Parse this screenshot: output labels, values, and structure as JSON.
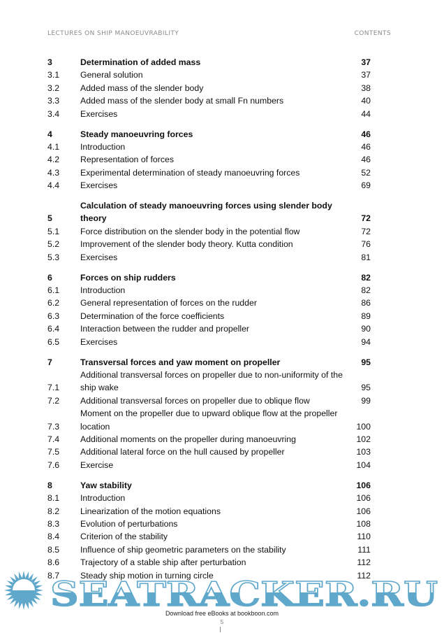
{
  "header": {
    "left": "LECTURES ON SHIP MANOEUVRABILITY",
    "right": "CONTENTS"
  },
  "toc": [
    {
      "chapter": {
        "num": "3",
        "title": "Determination of added mass",
        "page": "37"
      },
      "items": [
        {
          "num": "3.1",
          "title": "General solution",
          "page": "37"
        },
        {
          "num": "3.2",
          "title": "Added mass of the slender body",
          "page": "38"
        },
        {
          "num": "3.3",
          "title": "Added mass of the slender body at small Fn numbers",
          "page": "40"
        },
        {
          "num": "3.4",
          "title": "Exercises",
          "page": "44"
        }
      ]
    },
    {
      "chapter": {
        "num": "4",
        "title": "Steady manoeuvring forces",
        "page": "46"
      },
      "items": [
        {
          "num": "4.1",
          "title": "Introduction",
          "page": "46"
        },
        {
          "num": "4.2",
          "title": "Representation of forces",
          "page": "46"
        },
        {
          "num": "4.3",
          "title": "Experimental determination of steady manoeuvring forces",
          "page": "52"
        },
        {
          "num": "4.4",
          "title": "Exercises",
          "page": "69"
        }
      ]
    },
    {
      "chapter": {
        "num": "5",
        "title": "Calculation of steady manoeuvring forces using slender body theory",
        "page": "72"
      },
      "items": [
        {
          "num": "5.1",
          "title": "Force distribution on the slender body in the potential flow",
          "page": "72"
        },
        {
          "num": "5.2",
          "title": "Improvement of the slender body theory. Kutta condition",
          "page": "76"
        },
        {
          "num": "5.3",
          "title": "Exercises",
          "page": "81"
        }
      ]
    },
    {
      "chapter": {
        "num": "6",
        "title": "Forces on ship rudders",
        "page": "82"
      },
      "items": [
        {
          "num": "6.1",
          "title": "Introduction",
          "page": "82"
        },
        {
          "num": "6.2",
          "title": "General representation of forces on the rudder",
          "page": "86"
        },
        {
          "num": "6.3",
          "title": "Determination of the force coefficients",
          "page": "89"
        },
        {
          "num": "6.4",
          "title": "Interaction between the rudder and propeller",
          "page": "90"
        },
        {
          "num": "6.5",
          "title": "Exercises",
          "page": "94"
        }
      ]
    },
    {
      "chapter": {
        "num": "7",
        "title": "Transversal forces and yaw moment on propeller",
        "page": "95"
      },
      "items": [
        {
          "num": "7.1",
          "title": "Additional transversal forces on propeller due to non-uniformity of the ship wake",
          "page": "95"
        },
        {
          "num": "7.2",
          "title": "Additional transversal forces on propeller due to oblique flow",
          "page": "99"
        },
        {
          "num": "7.3",
          "title": "Moment on the propeller due to upward oblique flow at the propeller location",
          "page": "100"
        },
        {
          "num": "7.4",
          "title": "Additional moments on the propeller during manoeuvring",
          "page": "102"
        },
        {
          "num": "7.5",
          "title": "Additional lateral force on the hull caused by propeller",
          "page": "103"
        },
        {
          "num": "7.6",
          "title": "Exercise",
          "page": "104"
        }
      ]
    },
    {
      "chapter": {
        "num": "8",
        "title": "Yaw stability",
        "page": "106"
      },
      "items": [
        {
          "num": "8.1",
          "title": "Introduction",
          "page": "106"
        },
        {
          "num": "8.2",
          "title": "Linearization of the motion equations",
          "page": "106"
        },
        {
          "num": "8.3",
          "title": "Evolution of perturbations",
          "page": "108"
        },
        {
          "num": "8.4",
          "title": "Criterion of the stability",
          "page": "110"
        },
        {
          "num": "8.5",
          "title": "Influence of ship geometric parameters on the stability",
          "page": "111"
        },
        {
          "num": "8.6",
          "title": "Trajectory of a stable ship after perturbation",
          "page": "112"
        },
        {
          "num": "8.7",
          "title": "Steady ship motion in turning circle",
          "page": "112"
        }
      ]
    }
  ],
  "watermark": {
    "text": "SEATRACKER.RU",
    "icon": "sun-icon",
    "color": "#5fa8cc"
  },
  "footer": {
    "text": "Download free eBooks at bookboon.com",
    "page_number": "5"
  }
}
